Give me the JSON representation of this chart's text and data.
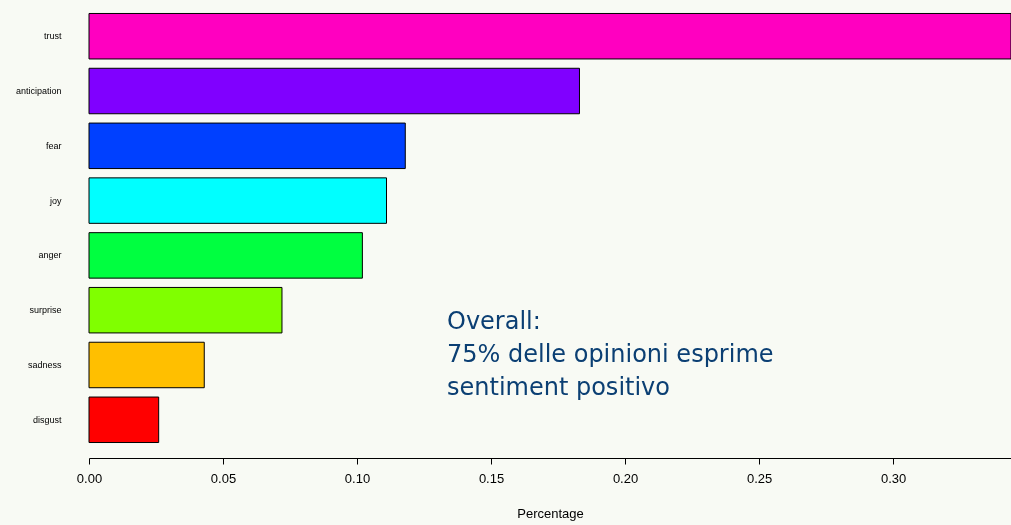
{
  "chart_data": {
    "type": "bar",
    "orientation": "horizontal",
    "xlabel": "Percentage",
    "categories": [
      "trust",
      "anticipation",
      "fear",
      "joy",
      "anger",
      "surprise",
      "sadness",
      "disgust"
    ],
    "values": [
      0.344,
      0.183,
      0.118,
      0.111,
      0.102,
      0.072,
      0.043,
      0.026
    ],
    "colors": [
      "#ff00c0",
      "#8000ff",
      "#0040ff",
      "#00ffff",
      "#00ff40",
      "#80ff00",
      "#ffbf00",
      "#ff0000"
    ],
    "xlim": [
      0,
      0.344
    ],
    "xticks": [
      {
        "value": 0,
        "label": "0.00"
      },
      0.05,
      {
        "value": 0.1,
        "label": "0.10"
      },
      0.15,
      {
        "value": 0.2,
        "label": "0.20"
      },
      0.25,
      {
        "value": 0.3,
        "label": "0.30"
      }
    ],
    "grid": false,
    "annotations": [
      "Overall:",
      "75% delle opinioni esprime",
      "sentiment positivo"
    ]
  }
}
